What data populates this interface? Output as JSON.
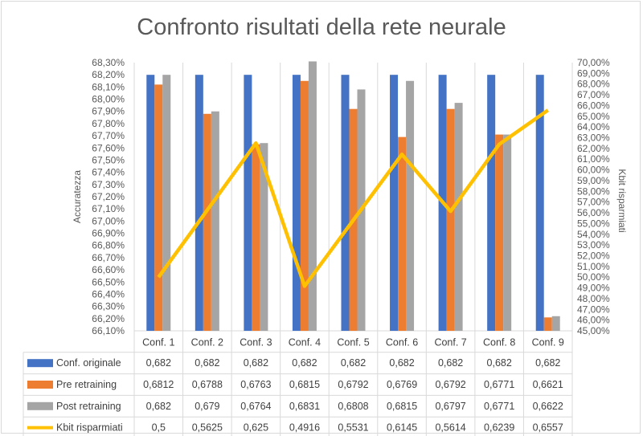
{
  "chart_data": {
    "type": "bar",
    "title": "Confronto risultati della rete neurale",
    "categories": [
      "Conf. 1",
      "Conf. 2",
      "Conf. 3",
      "Conf. 4",
      "Conf. 5",
      "Conf. 6",
      "Conf. 7",
      "Conf. 8",
      "Conf. 9"
    ],
    "ylabel": "Accuratezza",
    "y2label": "Kbit risparmiati",
    "ylim": [
      0.661,
      0.683
    ],
    "y2lim": [
      0.45,
      0.7
    ],
    "y_ticks": [
      "66,10%",
      "66,20%",
      "66,30%",
      "66,40%",
      "66,50%",
      "66,60%",
      "66,70%",
      "66,80%",
      "66,90%",
      "67,00%",
      "67,10%",
      "67,20%",
      "67,30%",
      "67,40%",
      "67,50%",
      "67,60%",
      "67,70%",
      "67,80%",
      "67,90%",
      "68,00%",
      "68,10%",
      "68,20%",
      "68,30%"
    ],
    "y2_ticks": [
      "45,00%",
      "46,00%",
      "47,00%",
      "48,00%",
      "49,00%",
      "50,00%",
      "51,00%",
      "52,00%",
      "53,00%",
      "54,00%",
      "55,00%",
      "56,00%",
      "57,00%",
      "58,00%",
      "59,00%",
      "60,00%",
      "61,00%",
      "62,00%",
      "63,00%",
      "64,00%",
      "65,00%",
      "66,00%",
      "67,00%",
      "68,00%",
      "69,00%",
      "70,00%"
    ],
    "series": [
      {
        "name": "Conf. originale",
        "type": "bar",
        "axis": "left",
        "color": "#4472c4",
        "values": [
          0.682,
          0.682,
          0.682,
          0.682,
          0.682,
          0.682,
          0.682,
          0.682,
          0.682
        ],
        "labels": [
          "0,682",
          "0,682",
          "0,682",
          "0,682",
          "0,682",
          "0,682",
          "0,682",
          "0,682",
          "0,682"
        ]
      },
      {
        "name": "Pre retraining",
        "type": "bar",
        "axis": "left",
        "color": "#ed7d31",
        "values": [
          0.6812,
          0.6788,
          0.6763,
          0.6815,
          0.6792,
          0.6769,
          0.6792,
          0.6771,
          0.6621
        ],
        "labels": [
          "0,6812",
          "0,6788",
          "0,6763",
          "0,6815",
          "0,6792",
          "0,6769",
          "0,6792",
          "0,6771",
          "0,6621"
        ]
      },
      {
        "name": "Post retraining",
        "type": "bar",
        "axis": "left",
        "color": "#a5a5a5",
        "values": [
          0.682,
          0.679,
          0.6764,
          0.6831,
          0.6808,
          0.6815,
          0.6797,
          0.6771,
          0.6622
        ],
        "labels": [
          "0,682",
          "0,679",
          "0,6764",
          "0,6831",
          "0,6808",
          "0,6815",
          "0,6797",
          "0,6771",
          "0,6622"
        ]
      },
      {
        "name": "Kbit risparmiati",
        "type": "line",
        "axis": "right",
        "color": "#ffc000",
        "values": [
          0.5,
          0.5625,
          0.625,
          0.4916,
          0.5531,
          0.6145,
          0.5614,
          0.6239,
          0.6557
        ],
        "labels": [
          "0,5",
          "0,5625",
          "0,625",
          "0,4916",
          "0,5531",
          "0,6145",
          "0,5614",
          "0,6239",
          "0,6557"
        ]
      }
    ],
    "grid": false,
    "legend": "data-table"
  }
}
